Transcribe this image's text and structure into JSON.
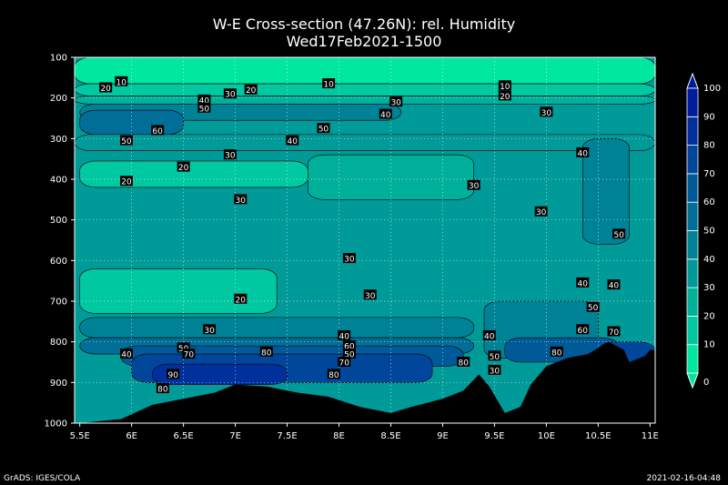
{
  "chart_data": {
    "type": "heatmap",
    "title": "W-E Cross-section (47.26N): rel. Humidity",
    "subtitle": "Wed17Feb2021-1500",
    "x_ticks": [
      "5.5E",
      "6E",
      "6.5E",
      "7E",
      "7.5E",
      "8E",
      "8.5E",
      "9E",
      "9.5E",
      "10E",
      "10.5E",
      "11E"
    ],
    "x_values": [
      5.5,
      6,
      6.5,
      7,
      7.5,
      8,
      8.5,
      9,
      9.5,
      10,
      10.5,
      11
    ],
    "y_ticks": [
      "100",
      "200",
      "300",
      "400",
      "500",
      "600",
      "700",
      "800",
      "900",
      "1000"
    ],
    "y_values": [
      100,
      200,
      300,
      400,
      500,
      600,
      700,
      800,
      900,
      1000
    ],
    "xlim": [
      5.45,
      11.05
    ],
    "ylim": [
      100,
      1000
    ],
    "grid": true,
    "colorbar": {
      "placement": "right",
      "levels": [
        0,
        10,
        20,
        30,
        40,
        50,
        60,
        70,
        80,
        90,
        100
      ],
      "labels": [
        "0",
        "10",
        "20",
        "30",
        "40",
        "50",
        "60",
        "70",
        "80",
        "90",
        "100"
      ],
      "colors": [
        "#00e8a0",
        "#00c8a0",
        "#00b09a",
        "#009a98",
        "#008296",
        "#006e96",
        "#005a98",
        "#00469a",
        "#00309c",
        "#001c9c"
      ]
    },
    "contour_labels": [
      {
        "text": "10",
        "x": 5.9,
        "p": 160
      },
      {
        "text": "20",
        "x": 5.75,
        "p": 175
      },
      {
        "text": "10",
        "x": 7.9,
        "p": 165
      },
      {
        "text": "20",
        "x": 7.15,
        "p": 180
      },
      {
        "text": "10",
        "x": 9.6,
        "p": 170
      },
      {
        "text": "20",
        "x": 9.6,
        "p": 195
      },
      {
        "text": "40",
        "x": 6.7,
        "p": 205
      },
      {
        "text": "30",
        "x": 6.95,
        "p": 190
      },
      {
        "text": "50",
        "x": 6.7,
        "p": 225
      },
      {
        "text": "30",
        "x": 8.55,
        "p": 210
      },
      {
        "text": "40",
        "x": 8.45,
        "p": 240
      },
      {
        "text": "30",
        "x": 10.0,
        "p": 235
      },
      {
        "text": "60",
        "x": 6.25,
        "p": 280
      },
      {
        "text": "50",
        "x": 7.85,
        "p": 275
      },
      {
        "text": "50",
        "x": 5.95,
        "p": 305
      },
      {
        "text": "40",
        "x": 7.55,
        "p": 305
      },
      {
        "text": "40",
        "x": 10.35,
        "p": 335
      },
      {
        "text": "30",
        "x": 6.95,
        "p": 340
      },
      {
        "text": "20",
        "x": 6.5,
        "p": 370
      },
      {
        "text": "20",
        "x": 5.95,
        "p": 405
      },
      {
        "text": "30",
        "x": 9.3,
        "p": 415
      },
      {
        "text": "30",
        "x": 7.05,
        "p": 450
      },
      {
        "text": "30",
        "x": 9.95,
        "p": 480
      },
      {
        "text": "50",
        "x": 10.7,
        "p": 535
      },
      {
        "text": "30",
        "x": 8.1,
        "p": 595
      },
      {
        "text": "40",
        "x": 10.35,
        "p": 655
      },
      {
        "text": "40",
        "x": 10.65,
        "p": 660
      },
      {
        "text": "30",
        "x": 8.3,
        "p": 685
      },
      {
        "text": "20",
        "x": 7.05,
        "p": 695
      },
      {
        "text": "50",
        "x": 10.45,
        "p": 715
      },
      {
        "text": "30",
        "x": 6.75,
        "p": 770
      },
      {
        "text": "60",
        "x": 10.35,
        "p": 770
      },
      {
        "text": "70",
        "x": 10.65,
        "p": 775
      },
      {
        "text": "40",
        "x": 8.05,
        "p": 785
      },
      {
        "text": "40",
        "x": 9.45,
        "p": 785
      },
      {
        "text": "50",
        "x": 6.5,
        "p": 815
      },
      {
        "text": "70",
        "x": 6.55,
        "p": 830
      },
      {
        "text": "80",
        "x": 7.3,
        "p": 825
      },
      {
        "text": "60",
        "x": 8.1,
        "p": 810
      },
      {
        "text": "50",
        "x": 8.1,
        "p": 830
      },
      {
        "text": "40",
        "x": 5.95,
        "p": 830
      },
      {
        "text": "80",
        "x": 10.1,
        "p": 825
      },
      {
        "text": "50",
        "x": 9.5,
        "p": 835
      },
      {
        "text": "70",
        "x": 8.05,
        "p": 850
      },
      {
        "text": "80",
        "x": 9.2,
        "p": 850
      },
      {
        "text": "30",
        "x": 9.5,
        "p": 870
      },
      {
        "text": "90",
        "x": 6.4,
        "p": 880
      },
      {
        "text": "80",
        "x": 7.95,
        "p": 880
      },
      {
        "text": "80",
        "x": 6.3,
        "p": 915
      }
    ],
    "terrain_bottom_hpa": [
      [
        5.5,
        1000
      ],
      [
        5.9,
        990
      ],
      [
        6.2,
        955
      ],
      [
        6.5,
        940
      ],
      [
        6.8,
        925
      ],
      [
        7.0,
        905
      ],
      [
        7.3,
        910
      ],
      [
        7.6,
        925
      ],
      [
        7.9,
        935
      ],
      [
        8.2,
        960
      ],
      [
        8.5,
        975
      ],
      [
        8.7,
        960
      ],
      [
        9.0,
        940
      ],
      [
        9.2,
        920
      ],
      [
        9.35,
        880
      ],
      [
        9.45,
        910
      ],
      [
        9.6,
        975
      ],
      [
        9.75,
        960
      ],
      [
        9.85,
        905
      ],
      [
        10.0,
        860
      ],
      [
        10.2,
        840
      ],
      [
        10.4,
        830
      ],
      [
        10.6,
        800
      ],
      [
        10.75,
        820
      ],
      [
        10.8,
        850
      ],
      [
        10.95,
        835
      ],
      [
        11.0,
        820
      ]
    ]
  },
  "footer_left": "GrADS: IGES/COLA",
  "footer_right": "2021-02-16-04:48"
}
